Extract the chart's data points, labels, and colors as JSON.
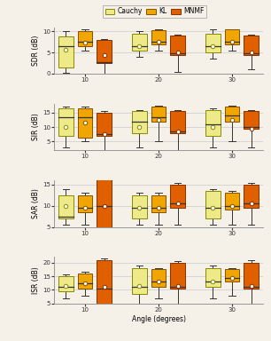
{
  "metrics": [
    "SDR (dB)",
    "SIR (dB)",
    "SAR (dB)",
    "ISR (dB)"
  ],
  "angles": [
    10,
    20,
    30
  ],
  "methods": [
    "Cauchy",
    "KL",
    "MNMF"
  ],
  "colors": {
    "Cauchy": "#eeea8a",
    "KL": "#f0a500",
    "MNMF": "#e06000"
  },
  "edge_colors": {
    "Cauchy": "#888800",
    "KL": "#885000",
    "MNMF": "#883000"
  },
  "box_data": {
    "SDR (dB)": {
      "Cauchy": {
        "10": {
          "q1": 1.5,
          "median": 6.5,
          "q3": 8.8,
          "whislo": 0.2,
          "whishi": 10.2,
          "mean": 5.7
        },
        "20": {
          "q1": 5.5,
          "median": 6.5,
          "q3": 9.5,
          "whislo": 4.0,
          "whishi": 10.0,
          "mean": 6.5
        },
        "30": {
          "q1": 5.0,
          "median": 6.5,
          "q3": 9.5,
          "whislo": 3.5,
          "whishi": 10.5,
          "mean": 6.5
        }
      },
      "KL": {
        "10": {
          "q1": 6.5,
          "median": 7.5,
          "q3": 10.2,
          "whislo": 5.5,
          "whishi": 10.5,
          "mean": 7.3
        },
        "20": {
          "q1": 7.0,
          "median": 7.5,
          "q3": 10.3,
          "whislo": 5.5,
          "whishi": 10.5,
          "mean": 7.5
        },
        "30": {
          "q1": 7.0,
          "median": 7.5,
          "q3": 10.5,
          "whislo": 5.5,
          "whishi": 10.5,
          "mean": 7.5
        }
      },
      "MNMF": {
        "10": {
          "q1": 2.5,
          "median": 2.8,
          "q3": 8.0,
          "whislo": 0.0,
          "whishi": 8.2,
          "mean": 4.5
        },
        "20": {
          "q1": 4.5,
          "median": 4.8,
          "q3": 9.0,
          "whislo": 0.5,
          "whishi": 9.2,
          "mean": 5.0
        },
        "30": {
          "q1": 4.5,
          "median": 4.8,
          "q3": 9.0,
          "whislo": 1.0,
          "whishi": 9.2,
          "mean": 5.0
        }
      }
    },
    "SIR (dB)": {
      "Cauchy": {
        "10": {
          "q1": 7.0,
          "median": 13.5,
          "q3": 16.5,
          "whislo": 3.0,
          "whishi": 17.0,
          "mean": 10.0
        },
        "20": {
          "q1": 8.0,
          "median": 12.0,
          "q3": 15.5,
          "whislo": 3.0,
          "whishi": 16.0,
          "mean": 10.0
        },
        "30": {
          "q1": 7.0,
          "median": 11.0,
          "q3": 16.0,
          "whislo": 3.0,
          "whishi": 16.5,
          "mean": 10.0
        }
      },
      "KL": {
        "10": {
          "q1": 6.5,
          "median": 13.5,
          "q3": 16.5,
          "whislo": 5.0,
          "whishi": 17.0,
          "mean": 11.5
        },
        "20": {
          "q1": 12.0,
          "median": 13.5,
          "q3": 17.0,
          "whislo": 5.0,
          "whishi": 17.5,
          "mean": 12.5
        },
        "30": {
          "q1": 12.0,
          "median": 14.0,
          "q3": 17.0,
          "whislo": 5.0,
          "whishi": 17.5,
          "mean": 12.5
        }
      },
      "MNMF": {
        "10": {
          "q1": 7.0,
          "median": 7.5,
          "q3": 15.0,
          "whislo": 2.0,
          "whishi": 15.5,
          "mean": 7.5
        },
        "20": {
          "q1": 8.0,
          "median": 8.5,
          "q3": 15.5,
          "whislo": 2.0,
          "whishi": 16.0,
          "mean": 8.5
        },
        "30": {
          "q1": 9.5,
          "median": 10.0,
          "q3": 15.5,
          "whislo": 3.0,
          "whishi": 16.0,
          "mean": 9.5
        }
      }
    },
    "SAR (dB)": {
      "Cauchy": {
        "10": {
          "q1": 7.0,
          "median": 7.5,
          "q3": 12.5,
          "whislo": 5.5,
          "whishi": 14.0,
          "mean": 10.0
        },
        "20": {
          "q1": 7.0,
          "median": 9.5,
          "q3": 12.5,
          "whislo": 5.5,
          "whishi": 13.0,
          "mean": 9.5
        },
        "30": {
          "q1": 7.0,
          "median": 9.5,
          "q3": 13.5,
          "whislo": 5.5,
          "whishi": 14.0,
          "mean": 9.5
        }
      },
      "KL": {
        "10": {
          "q1": 8.5,
          "median": 9.5,
          "q3": 12.5,
          "whislo": 5.5,
          "whishi": 13.0,
          "mean": 9.5
        },
        "20": {
          "q1": 8.5,
          "median": 9.5,
          "q3": 12.5,
          "whislo": 5.5,
          "whishi": 13.0,
          "mean": 9.5
        },
        "30": {
          "q1": 9.0,
          "median": 10.0,
          "q3": 13.0,
          "whislo": 5.5,
          "whishi": 13.5,
          "mean": 10.0
        }
      },
      "MNMF": {
        "10": {
          "q1": 4.0,
          "median": 10.0,
          "q3": 17.0,
          "whislo": 3.5,
          "whishi": 17.5,
          "mean": 10.0
        },
        "20": {
          "q1": 9.5,
          "median": 10.5,
          "q3": 15.0,
          "whislo": 5.5,
          "whishi": 15.5,
          "mean": 10.5
        },
        "30": {
          "q1": 9.5,
          "median": 10.5,
          "q3": 15.0,
          "whislo": 5.5,
          "whishi": 15.5,
          "mean": 10.5
        }
      }
    },
    "ISR (dB)": {
      "Cauchy": {
        "10": {
          "q1": 9.5,
          "median": 11.0,
          "q3": 15.0,
          "whislo": 7.0,
          "whishi": 15.5,
          "mean": 11.5
        },
        "20": {
          "q1": 8.5,
          "median": 11.0,
          "q3": 18.0,
          "whislo": 5.0,
          "whishi": 19.0,
          "mean": 11.5
        },
        "30": {
          "q1": 11.0,
          "median": 13.0,
          "q3": 18.0,
          "whislo": 7.0,
          "whishi": 19.0,
          "mean": 13.0
        }
      },
      "KL": {
        "10": {
          "q1": 10.5,
          "median": 12.5,
          "q3": 16.0,
          "whislo": 8.0,
          "whishi": 16.5,
          "mean": 12.5
        },
        "20": {
          "q1": 11.0,
          "median": 13.0,
          "q3": 17.5,
          "whislo": 7.0,
          "whishi": 18.0,
          "mean": 13.0
        },
        "30": {
          "q1": 13.0,
          "median": 14.5,
          "q3": 17.5,
          "whislo": 8.0,
          "whishi": 18.0,
          "mean": 14.5
        }
      },
      "MNMF": {
        "10": {
          "q1": 3.5,
          "median": 10.5,
          "q3": 21.0,
          "whislo": 3.0,
          "whishi": 21.5,
          "mean": 11.0
        },
        "20": {
          "q1": 10.5,
          "median": 11.0,
          "q3": 20.0,
          "whislo": 3.0,
          "whishi": 20.5,
          "mean": 11.5
        },
        "30": {
          "q1": 10.5,
          "median": 11.0,
          "q3": 20.0,
          "whislo": 5.0,
          "whishi": 21.0,
          "mean": 11.5
        }
      }
    }
  },
  "ylims": {
    "SDR (dB)": [
      0,
      11
    ],
    "SIR (dB)": [
      2,
      18
    ],
    "SAR (dB)": [
      5,
      16
    ],
    "ISR (dB)": [
      5,
      22
    ]
  },
  "yticks": {
    "SDR (dB)": [
      0,
      5,
      10
    ],
    "SIR (dB)": [
      5,
      10,
      15
    ],
    "SAR (dB)": [
      5,
      10,
      15
    ],
    "ISR (dB)": [
      5,
      10,
      15,
      20
    ]
  },
  "bg_color": "#f5f0e8",
  "fig_bg": "#f5f0e8"
}
